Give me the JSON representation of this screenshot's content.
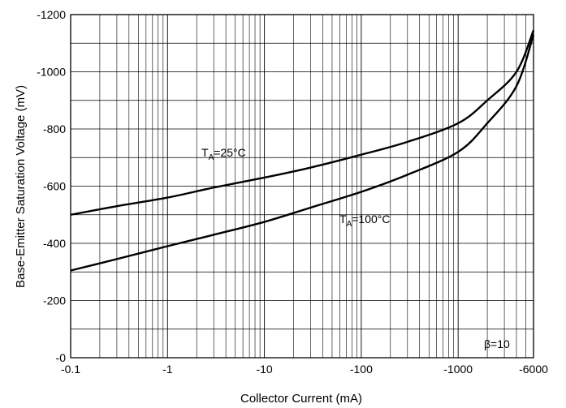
{
  "chart_data": {
    "type": "line",
    "xlabel": "Collector Current (mA)",
    "ylabel": "Base-Emitter Saturation Voltage (mV)",
    "x_scale": "log",
    "xlim": [
      -0.1,
      -6000
    ],
    "ylim": [
      0,
      -1200
    ],
    "x_ticks": [
      "-0.1",
      "-1",
      "-10",
      "-100",
      "-1000",
      "-6000"
    ],
    "y_ticks": [
      "-1200",
      "-1000",
      "-800",
      "-600",
      "-400",
      "-200",
      "-0"
    ],
    "grid": true,
    "series": [
      {
        "name": "TA=25°C",
        "x": [
          -0.1,
          -0.3,
          -1,
          -3,
          -10,
          -30,
          -100,
          -300,
          -1000,
          -2000,
          -4000,
          -6000
        ],
        "y": [
          -500,
          -530,
          -560,
          -595,
          -630,
          -665,
          -710,
          -755,
          -820,
          -900,
          -1000,
          -1145
        ]
      },
      {
        "name": "TA=100°C",
        "x": [
          -0.1,
          -0.3,
          -1,
          -3,
          -10,
          -30,
          -100,
          -300,
          -1000,
          -2000,
          -4000,
          -6000
        ],
        "y": [
          -305,
          -345,
          -390,
          -430,
          -475,
          -525,
          -580,
          -640,
          -720,
          -820,
          -950,
          -1130
        ]
      }
    ],
    "annotations": [
      {
        "text_main": "T",
        "text_sub": "A",
        "text_rest": "=25°C"
      },
      {
        "text_main": "T",
        "text_sub": "A",
        "text_rest": "=100°C"
      },
      {
        "text": "β=10"
      }
    ]
  }
}
